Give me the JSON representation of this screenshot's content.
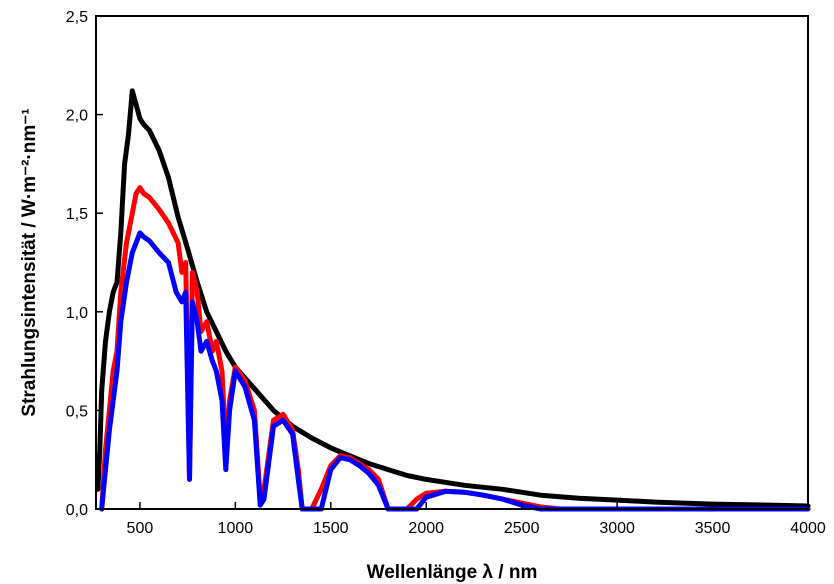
{
  "chart_data": {
    "type": "line",
    "title": "",
    "xlabel": "Wellenlänge λ / nm",
    "ylabel": "Strahlungsintensität / W·m⁻²·nm⁻¹",
    "xlim": [
      270,
      4000
    ],
    "ylim": [
      0,
      2.5
    ],
    "x_ticks": [
      500,
      1000,
      1500,
      2000,
      2500,
      3000,
      3500,
      4000
    ],
    "x_tick_labels": [
      "500",
      "1000",
      "1500",
      "2000",
      "2500",
      "3000",
      "3500",
      "4000"
    ],
    "y_ticks": [
      0,
      0.5,
      1.0,
      1.5,
      2.0,
      2.5
    ],
    "y_tick_labels": [
      "0,0",
      "0,5",
      "1,0",
      "1,5",
      "2,0",
      "2,5"
    ],
    "grid": false,
    "legend": "none",
    "series": [
      {
        "color": "#000000",
        "points": [
          [
            280,
            0.1
          ],
          [
            290,
            0.3
          ],
          [
            300,
            0.6
          ],
          [
            320,
            0.85
          ],
          [
            340,
            1.0
          ],
          [
            360,
            1.1
          ],
          [
            380,
            1.15
          ],
          [
            400,
            1.4
          ],
          [
            420,
            1.75
          ],
          [
            440,
            1.9
          ],
          [
            460,
            2.12
          ],
          [
            480,
            2.05
          ],
          [
            500,
            1.98
          ],
          [
            520,
            1.95
          ],
          [
            550,
            1.92
          ],
          [
            600,
            1.82
          ],
          [
            650,
            1.68
          ],
          [
            700,
            1.48
          ],
          [
            750,
            1.32
          ],
          [
            800,
            1.15
          ],
          [
            850,
            1.0
          ],
          [
            900,
            0.9
          ],
          [
            950,
            0.8
          ],
          [
            1000,
            0.72
          ],
          [
            1100,
            0.61
          ],
          [
            1200,
            0.5
          ],
          [
            1300,
            0.42
          ],
          [
            1400,
            0.36
          ],
          [
            1500,
            0.31
          ],
          [
            1600,
            0.27
          ],
          [
            1700,
            0.23
          ],
          [
            1800,
            0.2
          ],
          [
            1900,
            0.17
          ],
          [
            2000,
            0.15
          ],
          [
            2200,
            0.12
          ],
          [
            2400,
            0.1
          ],
          [
            2600,
            0.07
          ],
          [
            2800,
            0.055
          ],
          [
            3000,
            0.045
          ],
          [
            3200,
            0.035
          ],
          [
            3500,
            0.025
          ],
          [
            3800,
            0.02
          ],
          [
            4000,
            0.015
          ]
        ]
      },
      {
        "color": "#ff0000",
        "points": [
          [
            300,
            0.0
          ],
          [
            320,
            0.3
          ],
          [
            340,
            0.5
          ],
          [
            360,
            0.7
          ],
          [
            380,
            0.8
          ],
          [
            400,
            1.1
          ],
          [
            430,
            1.35
          ],
          [
            460,
            1.5
          ],
          [
            480,
            1.6
          ],
          [
            500,
            1.63
          ],
          [
            520,
            1.6
          ],
          [
            550,
            1.58
          ],
          [
            600,
            1.52
          ],
          [
            650,
            1.45
          ],
          [
            700,
            1.35
          ],
          [
            720,
            1.2
          ],
          [
            740,
            1.25
          ],
          [
            760,
            0.15
          ],
          [
            775,
            1.2
          ],
          [
            800,
            1.1
          ],
          [
            820,
            0.9
          ],
          [
            850,
            0.95
          ],
          [
            880,
            0.8
          ],
          [
            900,
            0.85
          ],
          [
            930,
            0.7
          ],
          [
            950,
            0.3
          ],
          [
            970,
            0.55
          ],
          [
            1000,
            0.72
          ],
          [
            1050,
            0.65
          ],
          [
            1100,
            0.5
          ],
          [
            1130,
            0.05
          ],
          [
            1150,
            0.1
          ],
          [
            1200,
            0.45
          ],
          [
            1250,
            0.48
          ],
          [
            1300,
            0.4
          ],
          [
            1330,
            0.2
          ],
          [
            1350,
            0.0
          ],
          [
            1400,
            0.0
          ],
          [
            1450,
            0.1
          ],
          [
            1500,
            0.22
          ],
          [
            1550,
            0.27
          ],
          [
            1600,
            0.26
          ],
          [
            1650,
            0.23
          ],
          [
            1700,
            0.2
          ],
          [
            1750,
            0.15
          ],
          [
            1800,
            0.0
          ],
          [
            1900,
            0.0
          ],
          [
            1950,
            0.05
          ],
          [
            2000,
            0.08
          ],
          [
            2100,
            0.09
          ],
          [
            2200,
            0.085
          ],
          [
            2300,
            0.07
          ],
          [
            2400,
            0.05
          ],
          [
            2500,
            0.03
          ],
          [
            2600,
            0.01
          ],
          [
            2700,
            0.0
          ],
          [
            4000,
            0.0
          ]
        ]
      },
      {
        "color": "#0000ff",
        "points": [
          [
            300,
            0.0
          ],
          [
            320,
            0.2
          ],
          [
            340,
            0.4
          ],
          [
            360,
            0.55
          ],
          [
            380,
            0.7
          ],
          [
            400,
            0.95
          ],
          [
            430,
            1.15
          ],
          [
            460,
            1.3
          ],
          [
            480,
            1.35
          ],
          [
            500,
            1.4
          ],
          [
            520,
            1.38
          ],
          [
            550,
            1.36
          ],
          [
            600,
            1.3
          ],
          [
            650,
            1.25
          ],
          [
            690,
            1.1
          ],
          [
            720,
            1.05
          ],
          [
            740,
            1.1
          ],
          [
            760,
            0.15
          ],
          [
            775,
            1.05
          ],
          [
            800,
            0.95
          ],
          [
            820,
            0.8
          ],
          [
            850,
            0.85
          ],
          [
            880,
            0.75
          ],
          [
            900,
            0.7
          ],
          [
            930,
            0.55
          ],
          [
            950,
            0.2
          ],
          [
            970,
            0.5
          ],
          [
            1000,
            0.7
          ],
          [
            1050,
            0.62
          ],
          [
            1100,
            0.45
          ],
          [
            1130,
            0.02
          ],
          [
            1150,
            0.05
          ],
          [
            1200,
            0.42
          ],
          [
            1250,
            0.45
          ],
          [
            1300,
            0.38
          ],
          [
            1330,
            0.15
          ],
          [
            1350,
            0.0
          ],
          [
            1450,
            0.0
          ],
          [
            1500,
            0.2
          ],
          [
            1550,
            0.26
          ],
          [
            1600,
            0.25
          ],
          [
            1650,
            0.22
          ],
          [
            1700,
            0.18
          ],
          [
            1750,
            0.12
          ],
          [
            1800,
            0.0
          ],
          [
            1950,
            0.0
          ],
          [
            2000,
            0.06
          ],
          [
            2100,
            0.09
          ],
          [
            2200,
            0.085
          ],
          [
            2300,
            0.07
          ],
          [
            2400,
            0.05
          ],
          [
            2500,
            0.02
          ],
          [
            2600,
            0.0
          ],
          [
            4000,
            0.0
          ]
        ]
      }
    ]
  }
}
